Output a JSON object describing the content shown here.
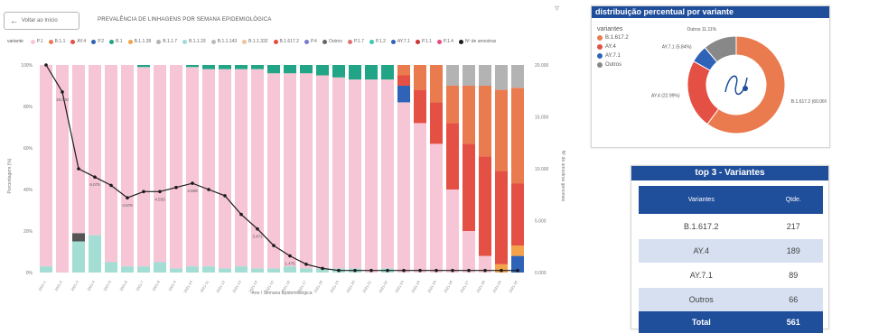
{
  "header": {
    "back_label": "Voltar ao Início",
    "title": "PREVALÊNCIA DE LINHAGENS POR SEMANA EPIDEMIOLÓGICA",
    "filter_icon": "filter-icon"
  },
  "colors": {
    "pink": "#f7c6d6",
    "teal": "#a3ddd4",
    "green": "#21a586",
    "darkgray": "#555555",
    "blue": "#2e63b8",
    "grey": "#b3b3b3",
    "orange": "#ea7b4e",
    "red": "#e45043",
    "lightorange": "#f4a34a",
    "accentblue": "#1f4e9b",
    "line": "#1c1c1c"
  },
  "legend": {
    "title": "variante",
    "items": [
      {
        "label": "P.1",
        "color": "#f7c6d6"
      },
      {
        "label": "B.1.1",
        "color": "#ea7b4e"
      },
      {
        "label": "AY.4",
        "color": "#e45043"
      },
      {
        "label": "P.2",
        "color": "#2e63b8"
      },
      {
        "label": "B.1",
        "color": "#21a586"
      },
      {
        "label": "B.1.1.28",
        "color": "#f4a34a"
      },
      {
        "label": "B.1.1.7",
        "color": "#b3b3b3"
      },
      {
        "label": "B.1.1.33",
        "color": "#a3ddd4"
      },
      {
        "label": "B.1.1.143",
        "color": "#bbbbbb"
      },
      {
        "label": "B.1.1.332",
        "color": "#efc39a"
      },
      {
        "label": "B.1.617.2",
        "color": "#e34d3c"
      },
      {
        "label": "P.4",
        "color": "#7b7bd0"
      },
      {
        "label": "Outros",
        "color": "#666666"
      },
      {
        "label": "P.1.7",
        "color": "#e07070"
      },
      {
        "label": "P.1.2",
        "color": "#3cc9b3"
      },
      {
        "label": "AY.7.1",
        "color": "#2e63b8"
      },
      {
        "label": "P.1.1",
        "color": "#cc3333"
      },
      {
        "label": "P.1.4",
        "color": "#e84a7a"
      },
      {
        "label": "Nº de amostras",
        "color": "#1c1c1c"
      }
    ]
  },
  "chart_data": {
    "type": "bar",
    "yaxis_left": {
      "label": "Porcentagem (%)",
      "ticks": [
        "100%",
        "80%",
        "60%",
        "40%",
        "20%",
        "0%"
      ]
    },
    "yaxis_right": {
      "label": "Nº de amostras genomas",
      "ticks": [
        "20.000",
        "15.000",
        "10.000",
        "5.000",
        "0.000"
      ]
    },
    "xlabel": "Ano / Semana Epidemiológica",
    "categories": [
      "2021-1",
      "2021-2",
      "2021-3",
      "2021-4",
      "2021-5",
      "2021-6",
      "2021-7",
      "2021-8",
      "2021-9",
      "2021-10",
      "2021-11",
      "2021-12",
      "2021-13",
      "2021-14",
      "2021-15",
      "2021-16",
      "2021-17",
      "2021-18",
      "2021-19",
      "2021-20",
      "2021-21",
      "2021-22",
      "2021-23",
      "2021-24",
      "2021-25",
      "2021-26",
      "2021-27",
      "2021-28",
      "2021-29",
      "2021-30"
    ],
    "stack_order": [
      "teal",
      "darkgray",
      "pink",
      "grey",
      "green",
      "blue",
      "lightorange",
      "red",
      "orange",
      "grey2",
      "cyan"
    ],
    "series": [
      {
        "name": "teal",
        "values": [
          3,
          0,
          15,
          18,
          5,
          3,
          3,
          5,
          2,
          3,
          3,
          2,
          3,
          2,
          2,
          3,
          2,
          2,
          2,
          2,
          0,
          2,
          0,
          0,
          0,
          0,
          0,
          0,
          0,
          0
        ]
      },
      {
        "name": "darkgray",
        "values": [
          0,
          0,
          4,
          0,
          0,
          0,
          0,
          0,
          0,
          0,
          0,
          0,
          0,
          0,
          0,
          0,
          0,
          0,
          0,
          0,
          0,
          0,
          0,
          0,
          0,
          0,
          0,
          0,
          0,
          0
        ]
      },
      {
        "name": "pink",
        "values": [
          97,
          100,
          81,
          82,
          95,
          97,
          96,
          95,
          98,
          96,
          95,
          96,
          95,
          96,
          94,
          93,
          94,
          93,
          92,
          91,
          93,
          91,
          82,
          72,
          62,
          40,
          20,
          8,
          0,
          0
        ]
      },
      {
        "name": "green",
        "values": [
          0,
          0,
          0,
          0,
          0,
          0,
          1,
          0,
          0,
          1,
          2,
          2,
          2,
          2,
          4,
          4,
          4,
          5,
          6,
          7,
          7,
          7,
          0,
          0,
          0,
          0,
          0,
          0,
          0,
          0
        ]
      },
      {
        "name": "blue",
        "values": [
          0,
          0,
          0,
          0,
          0,
          0,
          0,
          0,
          0,
          0,
          0,
          0,
          0,
          0,
          0,
          0,
          0,
          0,
          0,
          0,
          0,
          0,
          8,
          0,
          0,
          0,
          0,
          0,
          0,
          8
        ]
      },
      {
        "name": "lightorange",
        "values": [
          0,
          0,
          0,
          0,
          0,
          0,
          0,
          0,
          0,
          0,
          0,
          0,
          0,
          0,
          0,
          0,
          0,
          0,
          0,
          0,
          0,
          0,
          0,
          0,
          0,
          0,
          0,
          0,
          4,
          5
        ]
      },
      {
        "name": "red",
        "values": [
          0,
          0,
          0,
          0,
          0,
          0,
          0,
          0,
          0,
          0,
          0,
          0,
          0,
          0,
          0,
          0,
          0,
          0,
          0,
          0,
          0,
          0,
          5,
          16,
          20,
          32,
          42,
          48,
          45,
          30
        ]
      },
      {
        "name": "orange",
        "values": [
          0,
          0,
          0,
          0,
          0,
          0,
          0,
          0,
          0,
          0,
          0,
          0,
          0,
          0,
          0,
          0,
          0,
          0,
          0,
          0,
          0,
          0,
          5,
          12,
          18,
          18,
          28,
          34,
          39,
          46
        ]
      },
      {
        "name": "grey",
        "values": [
          0,
          0,
          0,
          0,
          0,
          0,
          0,
          0,
          0,
          0,
          0,
          0,
          0,
          0,
          0,
          0,
          0,
          0,
          0,
          0,
          0,
          0,
          0,
          0,
          0,
          10,
          10,
          10,
          12,
          11
        ]
      }
    ],
    "line": {
      "name": "Nº de amostras",
      "values": [
        100,
        87,
        50,
        46,
        42,
        36,
        39,
        39,
        41,
        43,
        40,
        37,
        28,
        21,
        13,
        8,
        4,
        2,
        1,
        1,
        1,
        1,
        1,
        1,
        1,
        1,
        1,
        1,
        1,
        1
      ],
      "labels": [
        "",
        "10.000",
        "",
        "6.075",
        "",
        "4.578",
        "",
        "4.533",
        "",
        "4.509",
        "",
        "",
        "",
        "3.471",
        "",
        "1.475",
        "",
        "",
        "",
        "",
        "",
        "",
        "",
        "",
        "",
        "",
        "",
        "",
        "",
        ""
      ]
    }
  },
  "donut": {
    "title": "distribuição percentual por variante",
    "legend_title": "variantes",
    "items": [
      {
        "label": "B.1.617.2",
        "color": "#ea7b4e",
        "value": 60.06,
        "text": "B.1.617.2 (60.06%)"
      },
      {
        "label": "AY.4",
        "color": "#e45043",
        "value": 22.99,
        "text": "AY.4 (22.99%)"
      },
      {
        "label": "AY.7.1",
        "color": "#2e63b8",
        "value": 5.84,
        "text": "AY.7.1 (5.84%)"
      },
      {
        "label": "Outros",
        "color": "#888888",
        "value": 11.11,
        "text": "Outros 11.11%"
      }
    ]
  },
  "table": {
    "title": "top 3 - Variantes",
    "col1": "Variantes",
    "col2": "Qtde.",
    "sort_icon": "sort-icon",
    "rows": [
      {
        "name": "B.1.617.2",
        "qty": "217"
      },
      {
        "name": "AY.4",
        "qty": "189"
      },
      {
        "name": "AY.7.1",
        "qty": "89"
      },
      {
        "name": "Outros",
        "qty": "66"
      }
    ],
    "total_label": "Total",
    "total_value": "561"
  }
}
